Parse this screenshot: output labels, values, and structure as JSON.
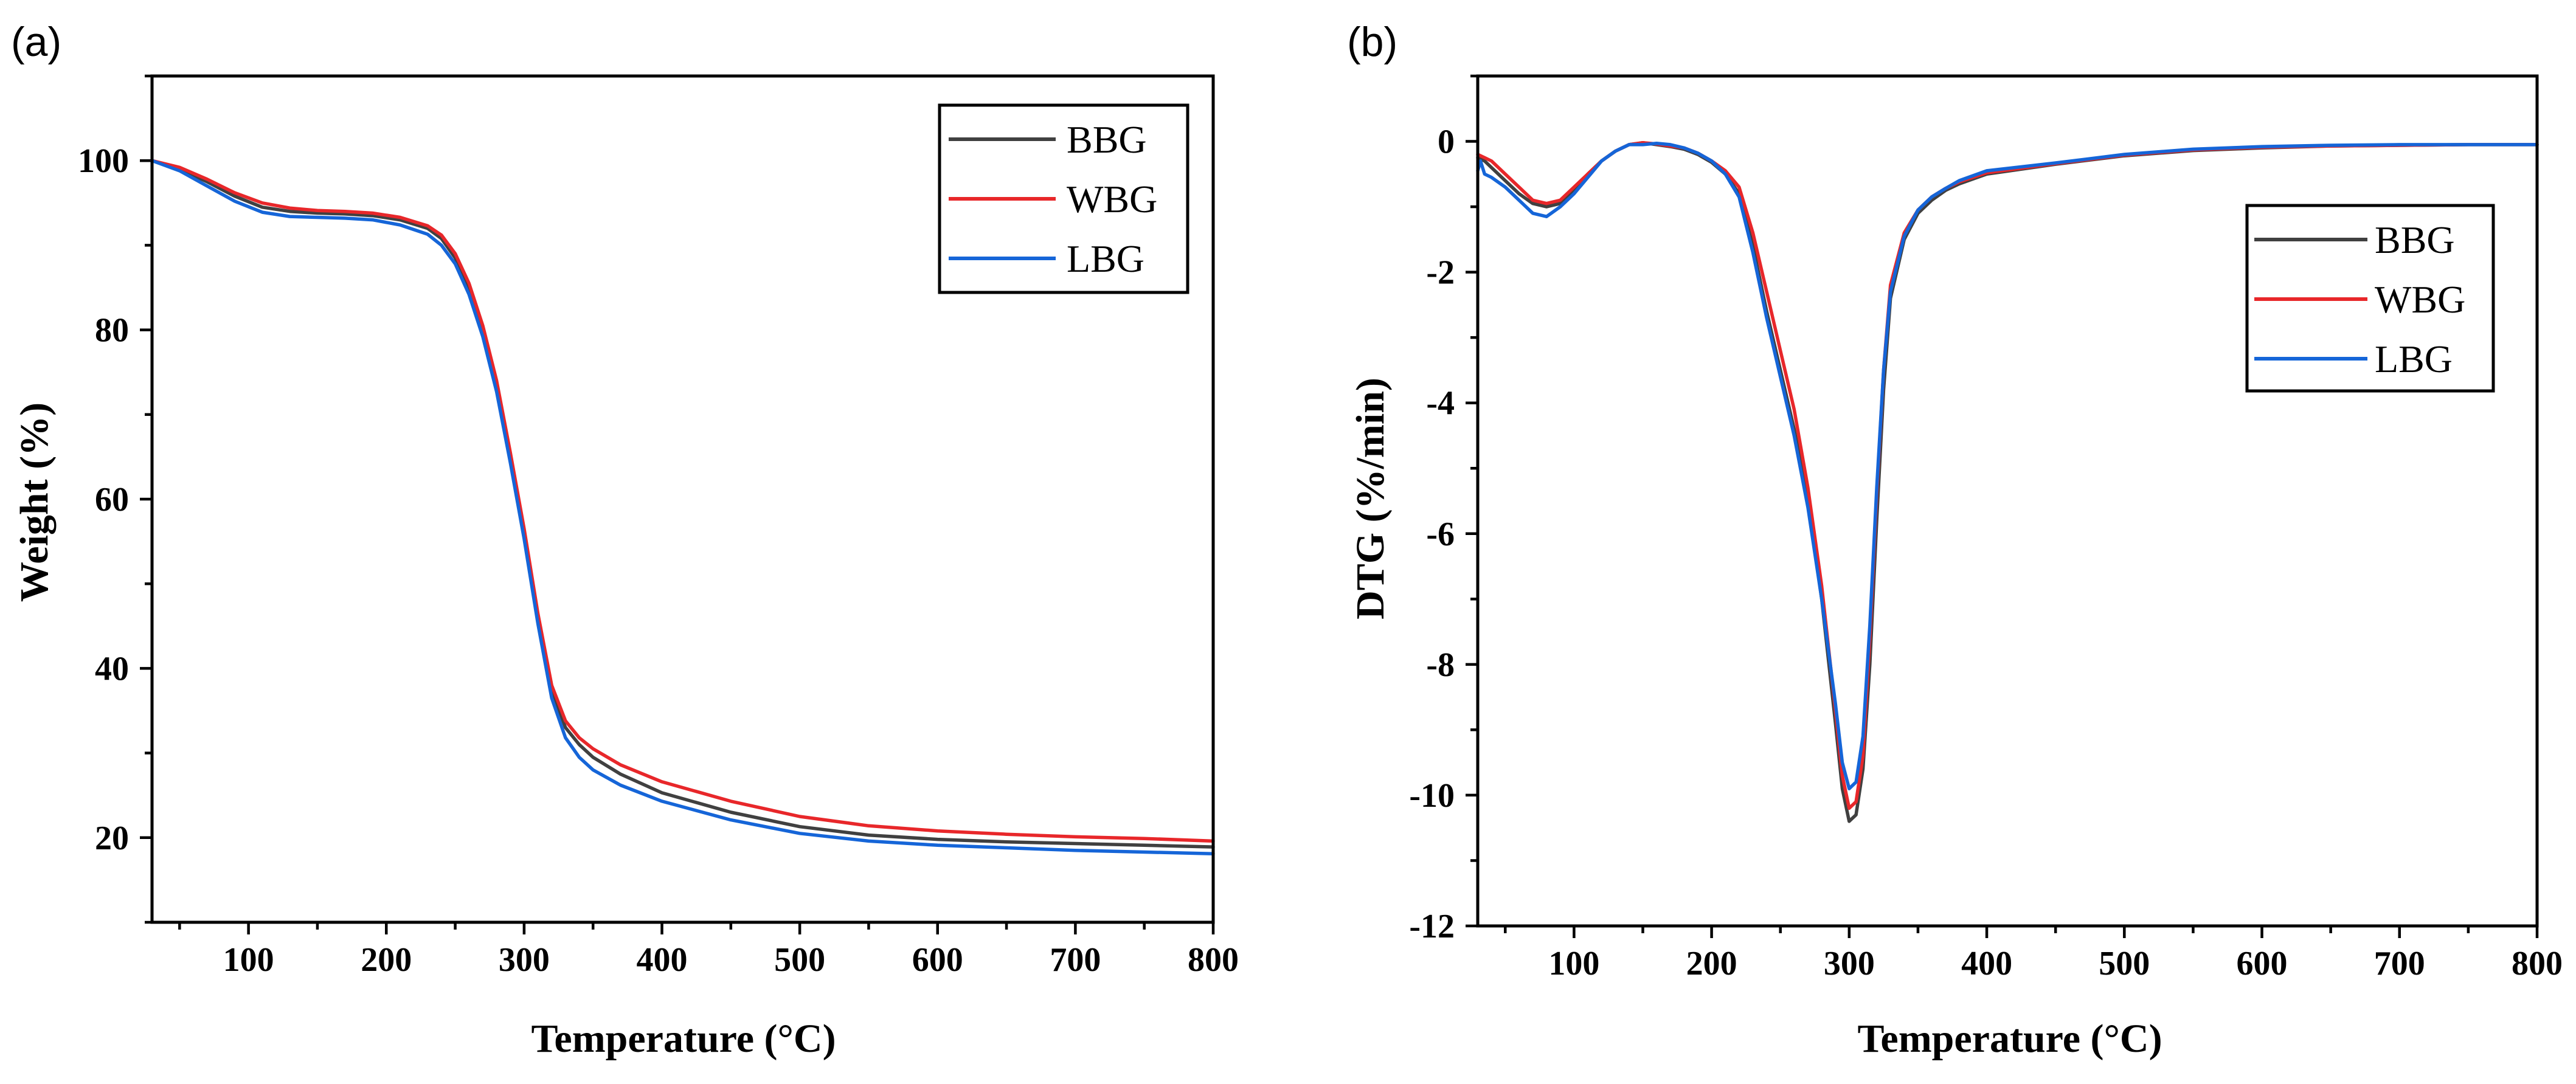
{
  "chart_data": [
    {
      "panel_label": "(a)",
      "type": "line",
      "xlabel": "Temperature (°C)",
      "ylabel": "Weight (%)",
      "xlim": [
        30,
        800
      ],
      "ylim": [
        10,
        110
      ],
      "xticks": [
        100,
        200,
        300,
        400,
        500,
        600,
        700,
        800
      ],
      "yticks": [
        20,
        40,
        60,
        80,
        100
      ],
      "ytick_labels": [
        "20",
        "40",
        "60",
        "80",
        "100"
      ],
      "legend_position": "top-right",
      "series": [
        {
          "name": "BBG",
          "color": "#404040",
          "x": [
            30,
            50,
            70,
            90,
            110,
            130,
            150,
            170,
            190,
            210,
            230,
            240,
            250,
            260,
            270,
            280,
            290,
            300,
            310,
            320,
            330,
            340,
            350,
            370,
            400,
            450,
            500,
            550,
            600,
            650,
            700,
            750,
            800
          ],
          "y": [
            100,
            99,
            97.5,
            95.8,
            94.5,
            94,
            93.8,
            93.7,
            93.5,
            93,
            92,
            90.8,
            88.5,
            85,
            80,
            73.5,
            65,
            56,
            46,
            37.5,
            33,
            31,
            29.5,
            27.5,
            25.3,
            23,
            21.3,
            20.3,
            19.8,
            19.5,
            19.3,
            19.1,
            18.9
          ]
        },
        {
          "name": "WBG",
          "color": "#e8272a",
          "x": [
            30,
            50,
            70,
            90,
            110,
            130,
            150,
            170,
            190,
            210,
            230,
            240,
            250,
            260,
            270,
            280,
            290,
            300,
            310,
            320,
            330,
            340,
            350,
            370,
            400,
            450,
            500,
            550,
            600,
            650,
            700,
            750,
            800
          ],
          "y": [
            100,
            99.2,
            97.8,
            96.2,
            95,
            94.4,
            94.1,
            94,
            93.8,
            93.3,
            92.3,
            91.2,
            89,
            85.5,
            80.5,
            74,
            65.5,
            56.5,
            46.5,
            38,
            33.8,
            31.8,
            30.5,
            28.6,
            26.6,
            24.3,
            22.5,
            21.4,
            20.8,
            20.4,
            20.1,
            19.9,
            19.6
          ]
        },
        {
          "name": "LBG",
          "color": "#1565d8",
          "x": [
            30,
            50,
            70,
            90,
            110,
            130,
            150,
            170,
            190,
            210,
            230,
            240,
            250,
            260,
            270,
            280,
            290,
            300,
            310,
            320,
            330,
            340,
            350,
            370,
            400,
            450,
            500,
            550,
            600,
            650,
            700,
            750,
            800
          ],
          "y": [
            100,
            98.8,
            97,
            95.2,
            93.9,
            93.4,
            93.3,
            93.2,
            93,
            92.4,
            91.3,
            90,
            87.8,
            84.2,
            79.2,
            72.7,
            64.3,
            55.3,
            45.3,
            36.5,
            31.8,
            29.5,
            28,
            26.2,
            24.3,
            22.1,
            20.5,
            19.6,
            19.1,
            18.8,
            18.5,
            18.3,
            18.1
          ]
        }
      ]
    },
    {
      "panel_label": "(b)",
      "type": "line",
      "xlabel": "Temperature (°C)",
      "ylabel": "DTG (%/min)",
      "xlim": [
        30,
        800
      ],
      "ylim": [
        -12,
        1
      ],
      "xticks": [
        100,
        200,
        300,
        400,
        500,
        600,
        700,
        800
      ],
      "yticks": [
        -12,
        -10,
        -8,
        -6,
        -4,
        -2,
        0
      ],
      "ytick_labels": [
        "-12",
        "-10",
        "-8",
        "-6",
        "-4",
        "-2",
        "0"
      ],
      "legend_position": "top-right",
      "series": [
        {
          "name": "BBG",
          "color": "#404040",
          "x": [
            30,
            35,
            40,
            50,
            60,
            70,
            80,
            90,
            100,
            110,
            120,
            130,
            140,
            150,
            160,
            170,
            180,
            190,
            200,
            210,
            220,
            230,
            240,
            250,
            260,
            270,
            280,
            290,
            295,
            300,
            305,
            310,
            315,
            320,
            325,
            330,
            340,
            350,
            360,
            370,
            380,
            400,
            450,
            500,
            550,
            600,
            650,
            700,
            750,
            800
          ],
          "y": [
            -0.25,
            -0.3,
            -0.4,
            -0.6,
            -0.8,
            -0.95,
            -1.0,
            -0.95,
            -0.75,
            -0.5,
            -0.3,
            -0.15,
            -0.05,
            -0.02,
            -0.05,
            -0.08,
            -0.12,
            -0.2,
            -0.32,
            -0.5,
            -0.8,
            -1.6,
            -2.6,
            -3.5,
            -4.4,
            -5.5,
            -7.0,
            -8.9,
            -9.9,
            -10.4,
            -10.3,
            -9.6,
            -8.0,
            -5.8,
            -3.8,
            -2.4,
            -1.5,
            -1.1,
            -0.9,
            -0.75,
            -0.65,
            -0.5,
            -0.35,
            -0.22,
            -0.14,
            -0.1,
            -0.07,
            -0.06,
            -0.05,
            -0.05
          ]
        },
        {
          "name": "WBG",
          "color": "#e8272a",
          "x": [
            30,
            35,
            40,
            50,
            60,
            70,
            80,
            90,
            100,
            110,
            120,
            130,
            140,
            150,
            160,
            170,
            180,
            190,
            200,
            210,
            220,
            230,
            240,
            250,
            260,
            270,
            280,
            290,
            295,
            300,
            305,
            310,
            315,
            320,
            325,
            330,
            340,
            350,
            360,
            370,
            380,
            400,
            450,
            500,
            550,
            600,
            650,
            700,
            750,
            800
          ],
          "y": [
            -0.2,
            -0.25,
            -0.3,
            -0.5,
            -0.7,
            -0.9,
            -0.95,
            -0.9,
            -0.7,
            -0.5,
            -0.3,
            -0.15,
            -0.05,
            -0.02,
            -0.04,
            -0.07,
            -0.1,
            -0.18,
            -0.3,
            -0.45,
            -0.7,
            -1.4,
            -2.3,
            -3.2,
            -4.1,
            -5.3,
            -6.8,
            -8.7,
            -9.7,
            -10.2,
            -10.1,
            -9.4,
            -7.6,
            -5.4,
            -3.5,
            -2.2,
            -1.4,
            -1.05,
            -0.85,
            -0.72,
            -0.62,
            -0.48,
            -0.34,
            -0.21,
            -0.13,
            -0.09,
            -0.07,
            -0.06,
            -0.05,
            -0.05
          ]
        },
        {
          "name": "LBG",
          "color": "#1565d8",
          "x": [
            30,
            32,
            35,
            40,
            50,
            60,
            70,
            80,
            90,
            100,
            110,
            120,
            130,
            140,
            150,
            160,
            170,
            180,
            190,
            200,
            210,
            220,
            230,
            240,
            250,
            260,
            270,
            280,
            290,
            295,
            300,
            305,
            310,
            315,
            320,
            325,
            330,
            340,
            350,
            360,
            370,
            380,
            400,
            450,
            500,
            550,
            600,
            650,
            700,
            750,
            800
          ],
          "y": [
            -0.45,
            -0.3,
            -0.5,
            -0.55,
            -0.7,
            -0.9,
            -1.1,
            -1.15,
            -1.0,
            -0.8,
            -0.55,
            -0.3,
            -0.15,
            -0.05,
            -0.05,
            -0.03,
            -0.05,
            -0.1,
            -0.18,
            -0.3,
            -0.5,
            -0.85,
            -1.7,
            -2.7,
            -3.6,
            -4.5,
            -5.6,
            -7.0,
            -8.6,
            -9.5,
            -9.9,
            -9.8,
            -9.1,
            -7.4,
            -5.3,
            -3.5,
            -2.3,
            -1.45,
            -1.05,
            -0.85,
            -0.72,
            -0.6,
            -0.45,
            -0.33,
            -0.2,
            -0.12,
            -0.08,
            -0.06,
            -0.05,
            -0.05,
            -0.05
          ]
        }
      ]
    }
  ]
}
